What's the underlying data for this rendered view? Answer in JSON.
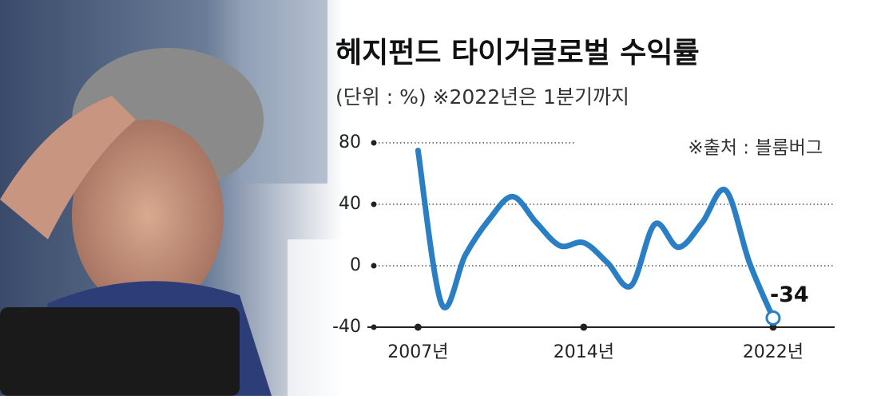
{
  "chart_data": {
    "type": "line",
    "title": "헤지펀드 타이거글로벌 수익률",
    "subtitle": "(단위 : %) ※2022년은 1분기까지",
    "source": "※출처 : 블룸버그",
    "x": [
      2007,
      2008,
      2009,
      2010,
      2011,
      2012,
      2013,
      2014,
      2015,
      2016,
      2017,
      2018,
      2019,
      2020,
      2021,
      2022
    ],
    "values": [
      75,
      -25,
      7,
      30,
      45,
      28,
      13,
      15,
      2,
      -13,
      27,
      12,
      28,
      49,
      2,
      -34
    ],
    "color": "#2a7fc4",
    "xlim": [
      2005.2,
      2024.6
    ],
    "xticks": [
      {
        "value": 2007,
        "label": "2007년"
      },
      {
        "value": 2014,
        "label": "2014년"
      },
      {
        "value": 2022,
        "label": "2022년"
      }
    ],
    "ylim": [
      -40,
      80
    ],
    "yticks": [
      80,
      40,
      0,
      -40
    ],
    "grid": true
  }
}
